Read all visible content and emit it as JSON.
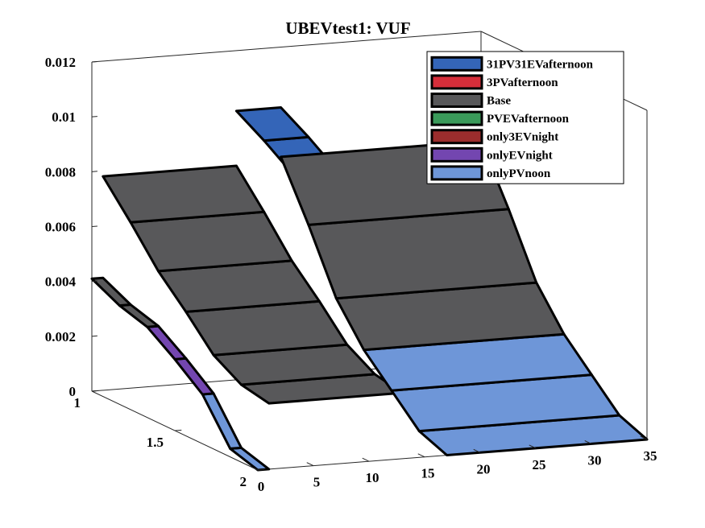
{
  "chart_data": {
    "type": "3d-surface",
    "title": "UBEVtest1: VUF",
    "xlabel": "",
    "ylabel": "",
    "zlabel": "",
    "xlim": [
      0,
      35
    ],
    "ylim": [
      1,
      2
    ],
    "zlim": [
      0,
      0.012
    ],
    "x_ticks": [
      "0",
      "5",
      "10",
      "15",
      "20",
      "25",
      "30",
      "35"
    ],
    "y_ticks": [
      "1",
      "1.5",
      "2"
    ],
    "z_ticks": [
      "0",
      "0.002",
      "0.004",
      "0.006",
      "0.008",
      "0.01",
      "0.012"
    ],
    "grid": false,
    "legend_position": "top-right",
    "scenario_order": [
      "onlyPVnoon",
      "onlyEVnight",
      "Base",
      "31PV31EVafternoon",
      "Base"
    ],
    "series": [
      {
        "name": "31PV31EVafternoon",
        "color": "#3465b8"
      },
      {
        "name": "3PVafternoon",
        "color": "#d62e3a"
      },
      {
        "name": "Base",
        "color": "#58585a"
      },
      {
        "name": "PVEVafternoon",
        "color": "#3a9a5a"
      },
      {
        "name": "only3EVnight",
        "color": "#9b2d2d"
      },
      {
        "name": "onlyEVnight",
        "color": "#7346b0"
      },
      {
        "name": "onlyPVnoon",
        "color": "#6e96d8"
      }
    ],
    "sections": [
      {
        "x_range": [
          0,
          1
        ],
        "values": [
          0.0,
          0.0003,
          0.0018,
          0.0026,
          0.0033,
          0.0036,
          0.0041
        ],
        "colors": [
          "#6e96d8",
          "#6e96d8",
          "#7346b0",
          "#7346b0",
          "#58585a",
          "#58585a",
          "#58585a"
        ]
      },
      {
        "x_range": [
          1,
          13
        ],
        "values": [
          0.0024,
          0.0026,
          0.0032,
          0.0043,
          0.0053,
          0.0066,
          0.0078
        ],
        "colors": [
          "#58585a",
          "#58585a",
          "#58585a",
          "#58585a",
          "#58585a",
          "#58585a",
          "#58585a"
        ]
      },
      {
        "x_range": [
          13,
          17
        ],
        "values": [
          0.0024,
          0.003,
          0.0045,
          0.0068,
          0.0085,
          0.0092,
          0.0098
        ],
        "colors": [
          "#3465b8",
          "#3465b8",
          "#3465b8",
          "#3465b8",
          "#3465b8",
          "#3465b8",
          "#3465b8"
        ]
      },
      {
        "x_range": [
          17,
          35
        ],
        "values": [
          0.0,
          0.0004,
          0.0014,
          0.0024,
          0.0038,
          0.006,
          0.008
        ],
        "colors": [
          "#6e96d8",
          "#6e96d8",
          "#6e96d8",
          "#58585a",
          "#58585a",
          "#58585a",
          "#58585a"
        ]
      }
    ]
  }
}
